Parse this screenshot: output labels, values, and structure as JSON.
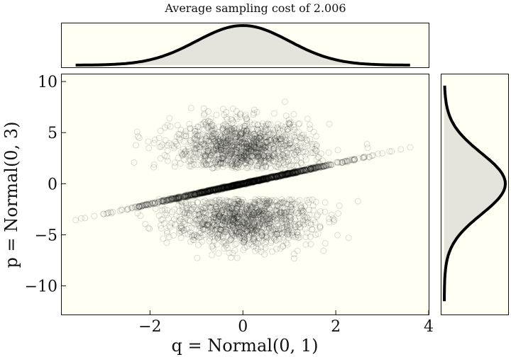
{
  "colors": {
    "panel_bg": "#fffff4",
    "curve": "#000000",
    "fill": "#e4e4dd",
    "points": "#000000"
  },
  "chart_data": {
    "type": "scatter",
    "title": "Average sampling cost of 2.006",
    "xlabel": "q = Normal(0, 1)",
    "ylabel": "p = Normal(0, 3)",
    "xlim": [
      -3.9,
      4.0
    ],
    "ylim": [
      -12.8,
      10.7
    ],
    "x_ticks": [
      -2,
      0,
      2,
      4
    ],
    "x_tick_labels": [
      "−2",
      "0",
      "2",
      "4"
    ],
    "y_ticks": [
      10,
      5,
      0,
      -5,
      -10
    ],
    "y_tick_labels": [
      "10",
      "5",
      "0",
      "−5",
      "−10"
    ],
    "grid": false,
    "series": [
      {
        "marker": "open-circle",
        "description_points": "line through origin with slope ~1",
        "line": {
          "x_from": -3.6,
          "x_to": 3.6,
          "slope": 0.99
        },
        "upper_cloud": {
          "x_center": 0,
          "x_sd": 0.75,
          "y_min": 1.5,
          "y_max": 9.5,
          "y_center": 3.4
        },
        "lower_cloud": {
          "x_center": 0,
          "x_sd": 0.75,
          "y_min": -9.8,
          "y_max": -1.5,
          "y_center": -3.4
        }
      }
    ],
    "marginals": {
      "top": {
        "type": "density",
        "variable": "q",
        "distribution": "Normal(0, 1)",
        "x_range": [
          -3.6,
          3.6
        ]
      },
      "right": {
        "type": "density",
        "variable": "p",
        "distribution": "Normal(0, 3)",
        "y_range": [
          -11.5,
          9.6
        ]
      }
    }
  }
}
